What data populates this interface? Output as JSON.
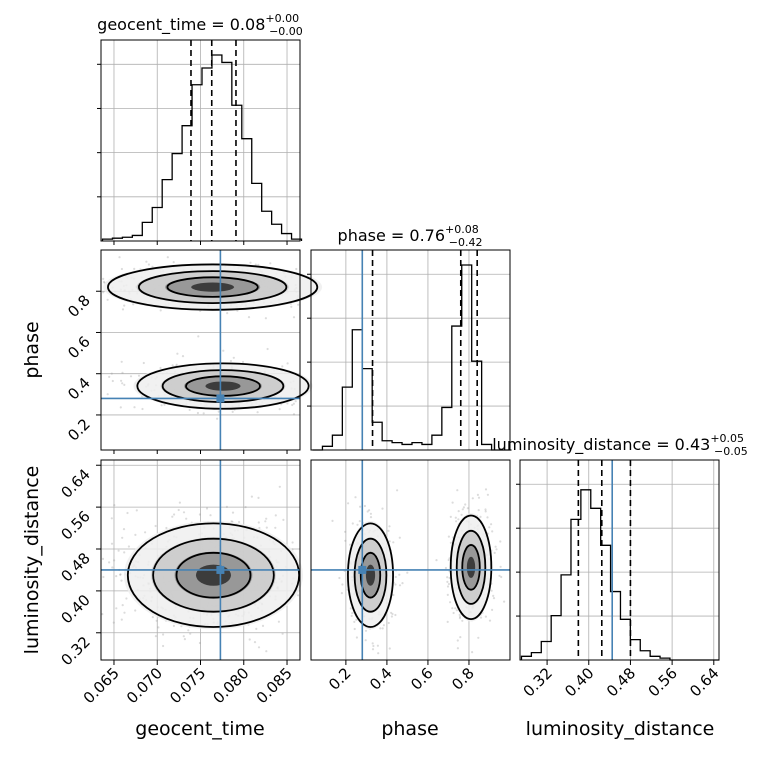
{
  "chart_data": [
    {
      "type": "histogram",
      "panel": "geocent_time-1d",
      "title": {
        "main": "geocent_time = 0.08",
        "sup": "+0.00",
        "sub": "−0.00"
      },
      "x_range": [
        0.0635,
        0.0865
      ],
      "bin_width": 0.00115,
      "counts": [
        0.01,
        0.015,
        0.02,
        0.03,
        0.1,
        0.18,
        0.33,
        0.47,
        0.62,
        0.84,
        0.93,
        1.0,
        0.96,
        0.73,
        0.55,
        0.31,
        0.16,
        0.09,
        0.04,
        0.01
      ],
      "quantiles": [
        0.0739,
        0.0763,
        0.0791
      ],
      "grid": true
    },
    {
      "type": "scatter+contour",
      "panel": "geocent_time-vs-phase",
      "x_range": [
        0.0635,
        0.0865
      ],
      "y_range": [
        0.03,
        1.0
      ],
      "y_ticks": [
        0.2,
        0.4,
        0.6,
        0.8
      ],
      "ylabel": "phase",
      "modes": [
        {
          "center": [
            0.0764,
            0.82
          ],
          "spread": [
            0.0055,
            0.05
          ],
          "weight": 0.55
        },
        {
          "center": [
            0.0776,
            0.34
          ],
          "spread": [
            0.0045,
            0.05
          ],
          "weight": 0.45
        }
      ],
      "truth": [
        0.0773,
        0.28
      ],
      "grid": true
    },
    {
      "type": "histogram",
      "panel": "phase-1d",
      "title": {
        "main": "phase = 0.76",
        "sup": "+0.08",
        "sub": "−0.42"
      },
      "x_range": [
        0.03,
        1.0
      ],
      "bin_width": 0.0485,
      "counts": [
        0.0,
        0.02,
        0.08,
        0.34,
        0.65,
        0.44,
        0.15,
        0.05,
        0.04,
        0.03,
        0.04,
        0.03,
        0.08,
        0.23,
        0.67,
        1.0,
        0.48,
        0.03,
        0.0,
        0.0
      ],
      "quantiles": [
        0.33,
        0.76,
        0.84
      ],
      "truth": 0.28,
      "grid": true
    },
    {
      "type": "scatter+contour",
      "panel": "geocent_time-vs-luminosity_distance",
      "x_range": [
        0.0635,
        0.0865
      ],
      "y_range": [
        0.268,
        0.65
      ],
      "x_ticks": [
        0.065,
        0.07,
        0.075,
        0.08,
        0.085
      ],
      "x_tick_labels": [
        "0.065",
        "0.070",
        "0.075",
        "0.080",
        "0.085"
      ],
      "y_ticks": [
        0.32,
        0.4,
        0.48,
        0.56,
        0.64
      ],
      "y_tick_labels": [
        "0.32",
        "0.40",
        "0.48",
        "0.56",
        "0.64"
      ],
      "xlabel": "geocent_time",
      "ylabel": "luminosity_distance",
      "modes": [
        {
          "center": [
            0.0765,
            0.43
          ],
          "spread": [
            0.0045,
            0.045
          ],
          "weight": 1.0
        }
      ],
      "truth": [
        0.0773,
        0.44
      ],
      "grid": true
    },
    {
      "type": "scatter+contour",
      "panel": "phase-vs-luminosity_distance",
      "x_range": [
        0.03,
        1.0
      ],
      "y_range": [
        0.268,
        0.65
      ],
      "x_ticks": [
        0.2,
        0.4,
        0.6,
        0.8
      ],
      "x_tick_labels": [
        "0.2",
        "0.4",
        "0.6",
        "0.8"
      ],
      "xlabel": "phase",
      "modes": [
        {
          "center": [
            0.32,
            0.43
          ],
          "spread": [
            0.05,
            0.045
          ],
          "weight": 0.45
        },
        {
          "center": [
            0.81,
            0.445
          ],
          "spread": [
            0.045,
            0.045
          ],
          "weight": 0.55
        }
      ],
      "truth": [
        0.28,
        0.44
      ],
      "grid": true
    },
    {
      "type": "histogram",
      "panel": "luminosity_distance-1d",
      "title": {
        "main": "luminosity_distance = 0.43",
        "sup": "+0.05",
        "sub": "−0.05"
      },
      "x_range": [
        0.268,
        0.65
      ],
      "bin_width": 0.019,
      "x_ticks": [
        0.32,
        0.4,
        0.48,
        0.56,
        0.64
      ],
      "x_tick_labels": [
        "0.32",
        "0.40",
        "0.48",
        "0.56",
        "0.64"
      ],
      "xlabel": "luminosity_distance",
      "counts": [
        0.02,
        0.04,
        0.1,
        0.24,
        0.46,
        0.76,
        0.92,
        0.82,
        0.62,
        0.37,
        0.22,
        0.11,
        0.05,
        0.02,
        0.01,
        0.0,
        0.0,
        0.0,
        0.0,
        0.0
      ],
      "quantiles": [
        0.38,
        0.425,
        0.48
      ],
      "truth": 0.445,
      "grid": true
    }
  ]
}
